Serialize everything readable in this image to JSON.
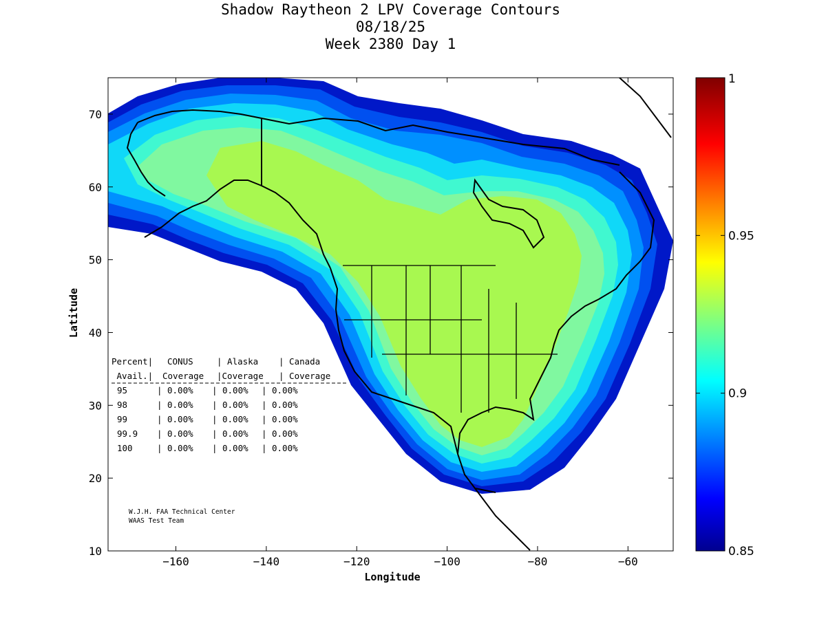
{
  "title": {
    "line1": "Shadow Raytheon 2 LPV Coverage Contours",
    "line2": "08/18/25",
    "line3": "Week 2380 Day 1"
  },
  "axes": {
    "xlabel": "Longitude",
    "ylabel": "Latitude",
    "xlim": [
      -175,
      -50
    ],
    "ylim": [
      10,
      75
    ],
    "xticks": [
      -160,
      -140,
      -120,
      -100,
      -80,
      -60
    ],
    "yticks": [
      10,
      20,
      30,
      40,
      50,
      60,
      70
    ]
  },
  "colorbar": {
    "min": 0.85,
    "max": 1,
    "ticks": [
      "1",
      "0.95",
      "0.9",
      "0.85"
    ],
    "colormap": "jet"
  },
  "stats_table": {
    "header1": [
      "Percent|",
      "CONUS",
      "| Alaska",
      "| Canada"
    ],
    "header2": [
      " Avail.|",
      "Coverage",
      "|Coverage",
      "| Coverage"
    ],
    "rows": [
      {
        "percent": "95",
        "conus": "0.00%",
        "alaska": "0.00%",
        "canada": "0.00%"
      },
      {
        "percent": "98",
        "conus": "0.00%",
        "alaska": "0.00%",
        "canada": "0.00%"
      },
      {
        "percent": "99",
        "conus": "0.00%",
        "alaska": "0.00%",
        "canada": "0.00%"
      },
      {
        "percent": "99.9",
        "conus": "0.00%",
        "alaska": "0.00%",
        "canada": "0.00%"
      },
      {
        "percent": "100",
        "conus": "0.00%",
        "alaska": "0.00%",
        "canada": "0.00%"
      }
    ]
  },
  "credit": {
    "line1": "W.J.H. FAA Technical Center",
    "line2": "WAAS Test Team"
  },
  "colors": {
    "outer": "#0018c8",
    "blue2": "#0050f0",
    "blue3": "#0090ff",
    "cyan": "#10d8f8",
    "aqua": "#40f8d0",
    "green": "#80f8a0",
    "core": "#a8f850"
  }
}
